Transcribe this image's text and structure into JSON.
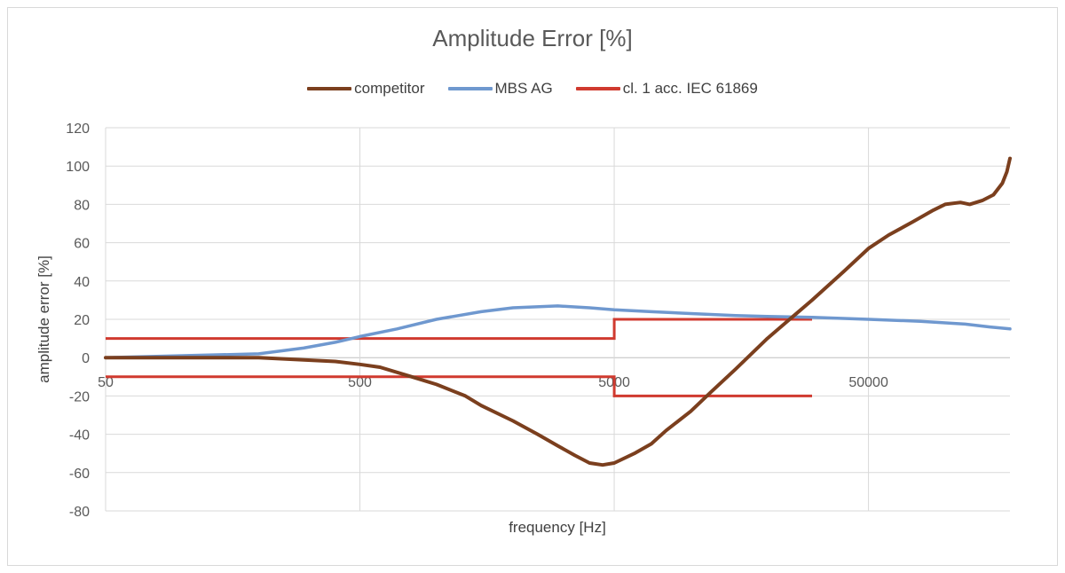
{
  "chart_data": {
    "type": "line",
    "title": "Amplitude Error [%]",
    "xlabel": "frequency [Hz]",
    "ylabel": "amplitude error [%]",
    "x_scale": "log",
    "xlim": [
      50,
      180000
    ],
    "ylim": [
      -80,
      120
    ],
    "y_ticks": [
      120,
      100,
      80,
      60,
      40,
      20,
      0,
      -20,
      -40,
      -60,
      -80
    ],
    "x_ticks": [
      50,
      500,
      5000,
      50000
    ],
    "x_tick_labels": [
      "50",
      "500",
      "5000",
      "50000"
    ],
    "grid": true,
    "legend_position": "top",
    "series": [
      {
        "name": "competitor",
        "color": "#7b3f1e",
        "points": [
          [
            50,
            0
          ],
          [
            100,
            0
          ],
          [
            200,
            0
          ],
          [
            400,
            -2
          ],
          [
            500,
            -3.5
          ],
          [
            600,
            -5
          ],
          [
            800,
            -10
          ],
          [
            1000,
            -14
          ],
          [
            1300,
            -20
          ],
          [
            1500,
            -25
          ],
          [
            2000,
            -33
          ],
          [
            2500,
            -40
          ],
          [
            3000,
            -46
          ],
          [
            3500,
            -51
          ],
          [
            4000,
            -55
          ],
          [
            4500,
            -56
          ],
          [
            5000,
            -55
          ],
          [
            6000,
            -50
          ],
          [
            7000,
            -45
          ],
          [
            8000,
            -38
          ],
          [
            10000,
            -28
          ],
          [
            12000,
            -18
          ],
          [
            15000,
            -6
          ],
          [
            20000,
            10
          ],
          [
            25000,
            21
          ],
          [
            30000,
            30
          ],
          [
            40000,
            45
          ],
          [
            50000,
            57
          ],
          [
            60000,
            64
          ],
          [
            75000,
            71
          ],
          [
            90000,
            77
          ],
          [
            100000,
            80
          ],
          [
            115000,
            81
          ],
          [
            125000,
            80
          ],
          [
            140000,
            82
          ],
          [
            155000,
            85
          ],
          [
            168000,
            91
          ],
          [
            175000,
            97
          ],
          [
            180000,
            104
          ]
        ]
      },
      {
        "name": "MBS AG",
        "color": "#6f98cf",
        "points": [
          [
            50,
            0
          ],
          [
            100,
            1
          ],
          [
            200,
            2
          ],
          [
            300,
            5
          ],
          [
            400,
            8
          ],
          [
            500,
            11
          ],
          [
            700,
            15
          ],
          [
            1000,
            20
          ],
          [
            1500,
            24
          ],
          [
            2000,
            26
          ],
          [
            3000,
            27
          ],
          [
            4000,
            26
          ],
          [
            5000,
            25
          ],
          [
            7000,
            24
          ],
          [
            10000,
            23
          ],
          [
            15000,
            22
          ],
          [
            20000,
            21.5
          ],
          [
            30000,
            21
          ],
          [
            50000,
            20
          ],
          [
            80000,
            19
          ],
          [
            120000,
            17.5
          ],
          [
            150000,
            16
          ],
          [
            180000,
            15
          ]
        ]
      },
      {
        "name": "cl. 1 acc. IEC 61869",
        "color": "#d03a2f",
        "segments": [
          [
            [
              50,
              10
            ],
            [
              5000,
              10
            ],
            [
              5000,
              20
            ],
            [
              30000,
              20
            ]
          ],
          [
            [
              50,
              -10
            ],
            [
              5000,
              -10
            ],
            [
              5000,
              -20
            ],
            [
              30000,
              -20
            ]
          ]
        ]
      }
    ]
  }
}
